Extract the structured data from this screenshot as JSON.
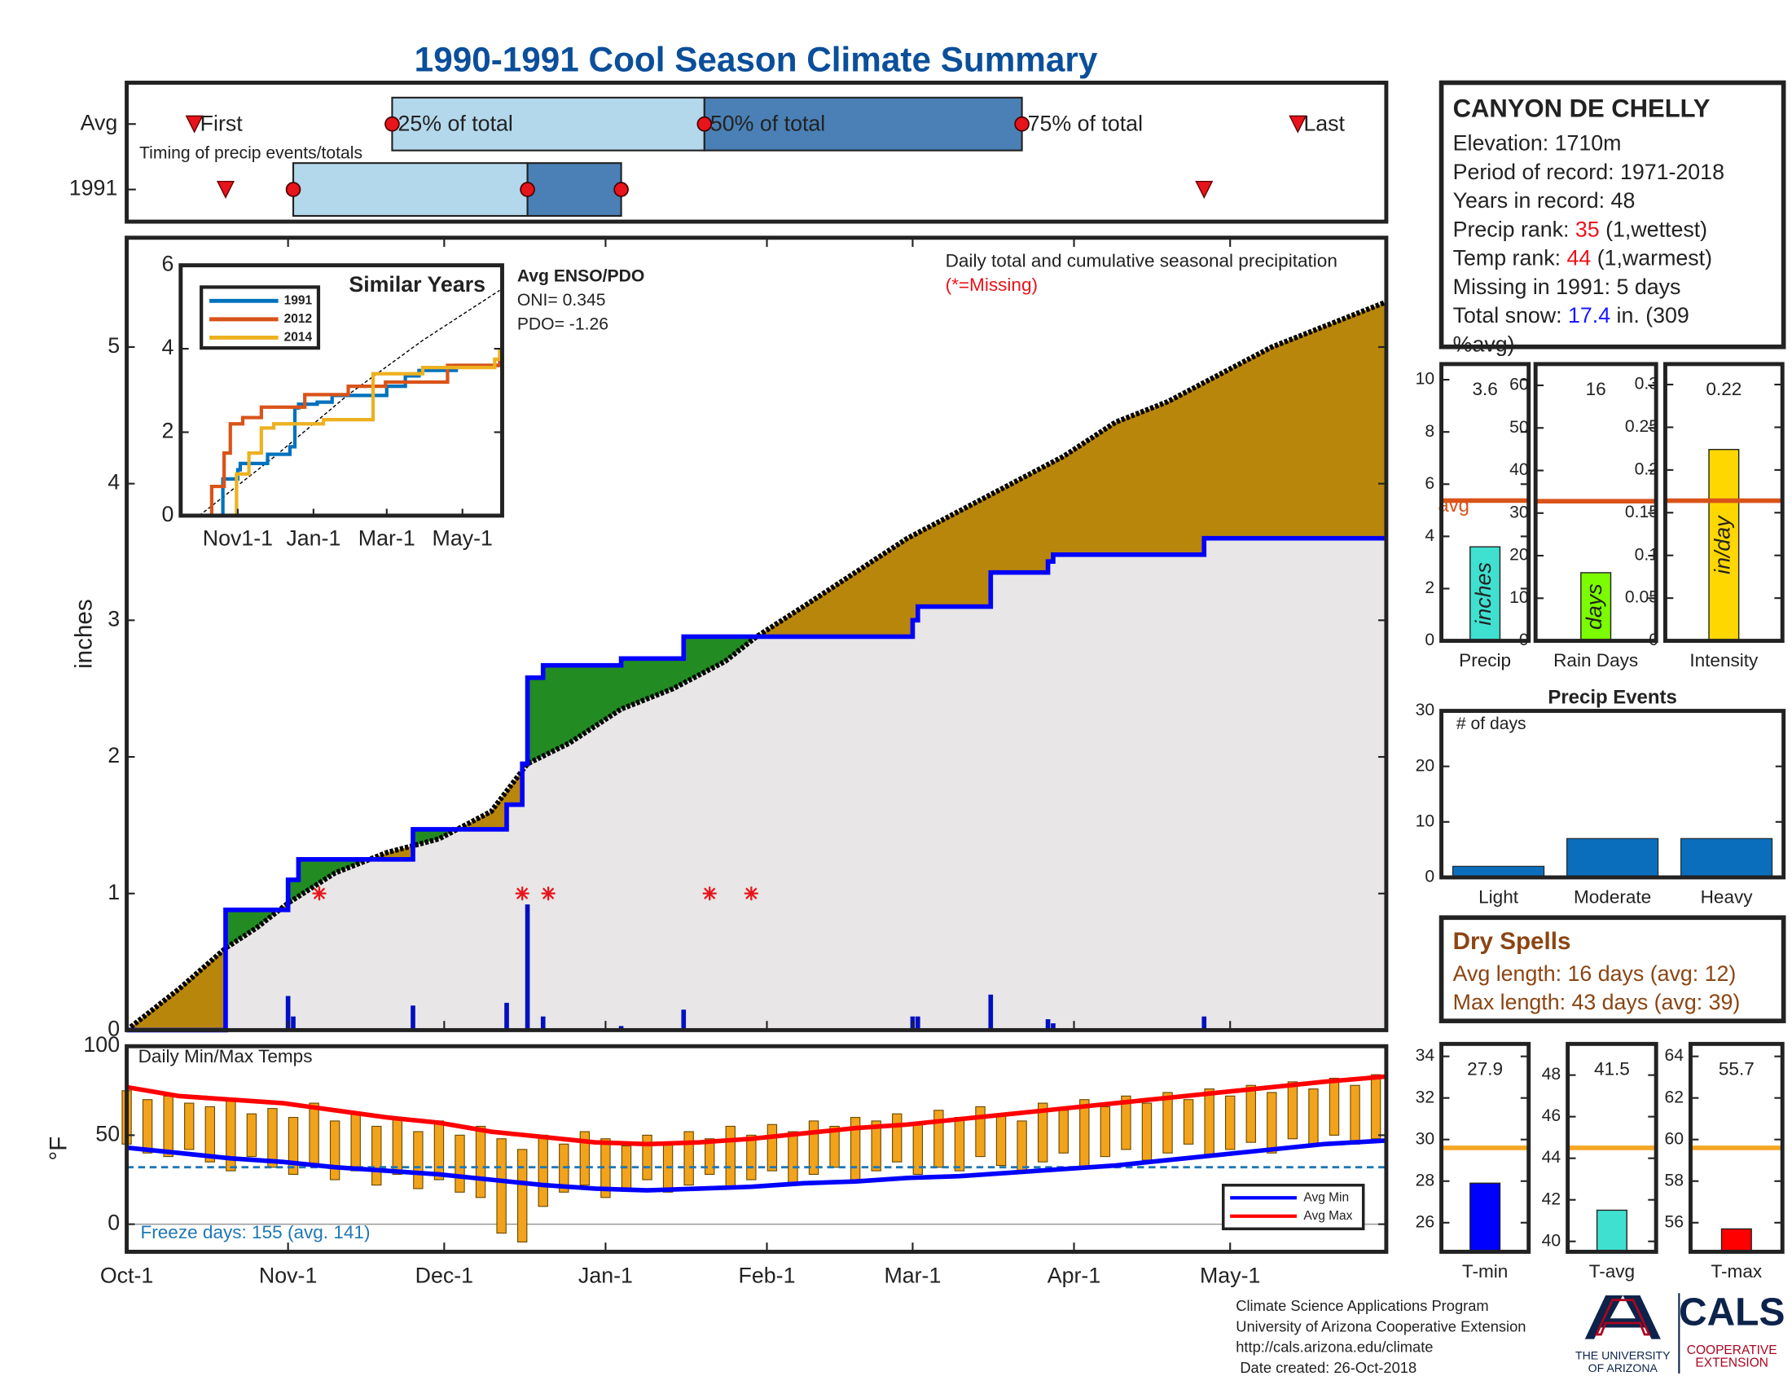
{
  "title": "1990-1991 Cool Season Climate Summary",
  "station": {
    "name": "CANYON DE CHELLY",
    "lines": [
      {
        "text": "Elevation: 1710m"
      },
      {
        "text": "Period of record: 1971-2018"
      },
      {
        "text": "Years in record: 48"
      },
      {
        "text": "Precip rank: ",
        "value": "35",
        "value_color": "#e8141b",
        "note": " (1,wettest)"
      },
      {
        "text": "Temp rank: ",
        "value": "44",
        "value_color": "#e8141b",
        "note": " (1,warmest)"
      },
      {
        "text": "Missing in 1991: 5 days"
      },
      {
        "text": "Total snow: ",
        "value": "17.4",
        "value_color": "#1a1aff",
        "note": " in. (309"
      },
      {
        "text": "%avg)"
      }
    ]
  },
  "dry_spells": {
    "title": "Dry Spells",
    "color": "#8b4513",
    "lines": [
      "Avg length: 16 days (avg: 12)",
      "Max length: 43 days (avg: 39)"
    ]
  },
  "footer": {
    "lines": [
      "Climate Science Applications Program",
      "University of Arizona Cooperative Extension",
      "http://cals.arizona.edu/climate",
      " Date created: 26-Oct-2018"
    ],
    "university": [
      "THE UNIVERSITY",
      "OF ARIZONA"
    ],
    "cals": "CALS",
    "extension": [
      "COOPERATIVE",
      "EXTENSION"
    ]
  },
  "chart_data": [
    {
      "type": "timing",
      "xlim": [
        0,
        242
      ],
      "note": "Timing of precip events/totals",
      "labels": {
        "first": "First",
        "p25": "25% of total",
        "p50": "50% of total",
        "p75": "75% of total",
        "last": "Last"
      },
      "box_colors": [
        "#b3d8ec",
        "#4a80b6"
      ],
      "marker_color": "#e8141b",
      "rows": [
        {
          "name": "Avg",
          "first": 13,
          "p25": 51,
          "p50": 111,
          "p75": 172,
          "last": 225
        },
        {
          "name": "1991",
          "first": 19,
          "p25": 32,
          "p50": 77,
          "p75": 95,
          "last": 207
        }
      ]
    },
    {
      "type": "step-area",
      "xlim": [
        0,
        242
      ],
      "ylim": [
        0,
        5.8
      ],
      "yticks": [
        0,
        1,
        2,
        3,
        4,
        5
      ],
      "ylabel": "inches",
      "annotation": "Daily total and cumulative seasonal precipitation",
      "missing_note": "(*=Missing)",
      "missing_color": "#e8141b",
      "deficit_color": "#b8860b",
      "surplus_color": "#228b22",
      "base_color": "#e8e6e6",
      "average": {
        "color": "#000000",
        "x": [
          0,
          10,
          19,
          25,
          31,
          40,
          50,
          60,
          70,
          77,
          85,
          95,
          105,
          115,
          121,
          130,
          140,
          150,
          160,
          170,
          180,
          190,
          200,
          210,
          220,
          230,
          242
        ],
        "values": [
          0,
          0.3,
          0.6,
          0.75,
          0.93,
          1.15,
          1.3,
          1.4,
          1.6,
          1.95,
          2.1,
          2.35,
          2.5,
          2.7,
          2.88,
          3.1,
          3.35,
          3.6,
          3.8,
          4.0,
          4.2,
          4.45,
          4.6,
          4.8,
          5.0,
          5.15,
          5.33
        ]
      },
      "season": {
        "color": "#0000ff",
        "x": [
          0,
          19,
          31,
          33,
          55,
          73,
          76,
          77,
          80,
          95,
          107,
          151,
          152,
          166,
          177,
          178,
          207,
          242
        ],
        "values": [
          0,
          0.88,
          1.1,
          1.25,
          1.47,
          1.65,
          1.95,
          2.58,
          2.67,
          2.72,
          2.88,
          3.0,
          3.1,
          3.35,
          3.43,
          3.48,
          3.6,
          3.6
        ]
      },
      "daily": {
        "color": "#0010c0",
        "x": [
          31,
          32,
          55,
          73,
          77,
          80,
          95,
          107,
          151,
          152,
          166,
          177,
          178,
          207
        ],
        "values": [
          0.25,
          0.1,
          0.18,
          0.2,
          0.92,
          0.1,
          0.03,
          0.15,
          0.1,
          0.1,
          0.26,
          0.08,
          0.05,
          0.1
        ]
      },
      "missing_x": [
        37,
        76,
        81,
        112,
        120
      ]
    },
    {
      "type": "line",
      "title": "Similar Years",
      "xlim": [
        -15,
        244
      ],
      "ylim": [
        0,
        6
      ],
      "xticks": [
        {
          "value": 31,
          "label": "Nov1-1"
        },
        {
          "value": 92,
          "label": "Jan-1"
        },
        {
          "value": 151,
          "label": "Mar-1"
        },
        {
          "value": 212,
          "label": "May-1"
        }
      ],
      "yticks": [
        0,
        2,
        4,
        6
      ],
      "annotations": [
        "Avg ENSO/PDO",
        "ONI= 0.345",
        "PDO= -1.26"
      ],
      "series": [
        {
          "name": "1991",
          "color": "#0072bd",
          "x": [
            0,
            19,
            31,
            33,
            55,
            73,
            77,
            80,
            95,
            107,
            151,
            166,
            177,
            207,
            242
          ],
          "values": [
            0,
            0.88,
            1.1,
            1.25,
            1.47,
            1.65,
            2.58,
            2.67,
            2.72,
            2.88,
            3.1,
            3.35,
            3.48,
            3.6,
            3.6
          ]
        },
        {
          "name": "2012",
          "color": "#d95319",
          "x": [
            0,
            10,
            20,
            25,
            35,
            50,
            85,
            120,
            150,
            200,
            242
          ],
          "values": [
            0,
            0.7,
            1.5,
            2.2,
            2.35,
            2.6,
            2.9,
            3.1,
            3.2,
            3.6,
            3.8
          ]
        },
        {
          "name": "2014",
          "color": "#edb120",
          "x": [
            0,
            30,
            40,
            50,
            60,
            100,
            140,
            180,
            238,
            242
          ],
          "values": [
            0,
            1.0,
            1.5,
            2.1,
            2.2,
            2.3,
            3.4,
            3.55,
            3.75,
            4.0
          ]
        }
      ],
      "average": {
        "color": "#000000",
        "x": [
          0,
          60,
          120,
          180,
          242
        ],
        "values": [
          0,
          1.4,
          2.9,
          4.2,
          5.4
        ]
      }
    },
    {
      "type": "range-bar",
      "title": "Daily Min/Max Temps",
      "ylabel": "°F",
      "xlim": [
        0,
        242
      ],
      "ylim": [
        -15.5,
        100
      ],
      "yticks": [
        0,
        50,
        100
      ],
      "xticks": [
        {
          "value": 0,
          "label": "Oct-1"
        },
        {
          "value": 31,
          "label": "Nov-1"
        },
        {
          "value": 61,
          "label": "Dec-1"
        },
        {
          "value": 92,
          "label": "Jan-1"
        },
        {
          "value": 123,
          "label": "Feb-1"
        },
        {
          "value": 151,
          "label": "Mar-1"
        },
        {
          "value": 182,
          "label": "Apr-1"
        },
        {
          "value": 212,
          "label": "May-1"
        }
      ],
      "freeze": 32,
      "freeze_color": "#1f77b4",
      "freeze_note": "Freeze days: 155 (avg. 141)",
      "bar_color": "#f2a31c",
      "legend": "lower right",
      "x": [
        0,
        4,
        8,
        12,
        16,
        20,
        24,
        28,
        32,
        36,
        40,
        44,
        48,
        52,
        56,
        60,
        64,
        68,
        72,
        76,
        80,
        84,
        88,
        92,
        96,
        100,
        104,
        108,
        112,
        116,
        120,
        124,
        128,
        132,
        136,
        140,
        144,
        148,
        152,
        156,
        160,
        164,
        168,
        172,
        176,
        180,
        184,
        188,
        192,
        196,
        200,
        204,
        208,
        212,
        216,
        220,
        224,
        228,
        232,
        236,
        240
      ],
      "max": [
        75,
        70,
        72,
        68,
        66,
        70,
        62,
        65,
        60,
        68,
        58,
        62,
        55,
        60,
        52,
        58,
        50,
        55,
        48,
        42,
        50,
        45,
        52,
        48,
        44,
        50,
        46,
        52,
        48,
        55,
        50,
        56,
        52,
        58,
        55,
        60,
        58,
        62,
        57,
        64,
        60,
        66,
        62,
        58,
        68,
        64,
        70,
        66,
        72,
        68,
        74,
        70,
        76,
        72,
        78,
        74,
        80,
        76,
        82,
        78,
        84
      ],
      "min": [
        45,
        40,
        38,
        42,
        35,
        30,
        38,
        32,
        28,
        34,
        25,
        30,
        22,
        28,
        20,
        25,
        18,
        15,
        -5,
        -10,
        10,
        18,
        22,
        15,
        20,
        25,
        18,
        22,
        28,
        20,
        25,
        30,
        22,
        28,
        32,
        25,
        30,
        35,
        28,
        32,
        30,
        38,
        33,
        30,
        35,
        40,
        32,
        38,
        42,
        36,
        40,
        45,
        38,
        42,
        46,
        40,
        48,
        44,
        50,
        45,
        48
      ],
      "series": [
        {
          "name": "Avg Min",
          "color": "#0000ff",
          "x": [
            0,
            10,
            20,
            30,
            40,
            50,
            60,
            70,
            80,
            90,
            100,
            110,
            120,
            130,
            140,
            150,
            160,
            170,
            180,
            190,
            200,
            210,
            220,
            230,
            242
          ],
          "values": [
            43,
            40,
            37,
            35,
            32,
            30,
            28,
            25,
            22,
            20,
            19,
            20,
            21,
            23,
            24,
            26,
            27,
            29,
            31,
            33,
            36,
            39,
            42,
            45,
            47
          ]
        },
        {
          "name": "Avg Max",
          "color": "#ff0000",
          "x": [
            0,
            10,
            20,
            30,
            40,
            50,
            60,
            70,
            80,
            90,
            100,
            110,
            120,
            130,
            140,
            150,
            160,
            170,
            180,
            190,
            200,
            210,
            220,
            230,
            242
          ],
          "values": [
            77,
            72,
            70,
            68,
            64,
            60,
            57,
            52,
            49,
            46,
            45,
            46,
            48,
            51,
            54,
            56,
            59,
            62,
            65,
            68,
            71,
            74,
            77,
            80,
            83
          ]
        }
      ]
    },
    {
      "type": "bar",
      "category": "Precip",
      "value": 3.6,
      "unit": "inches",
      "avg": 5.37,
      "avg_label": "avg",
      "ylim": [
        0,
        10.6
      ],
      "yticks": [
        0,
        2,
        4,
        6,
        8,
        10
      ],
      "color": "#40e0d0",
      "avg_color": "#d95319"
    },
    {
      "type": "bar",
      "category": "Rain Days",
      "value": 16,
      "unit": "days",
      "avg": 32.8,
      "ylim": [
        0,
        65
      ],
      "yticks": [
        0,
        10,
        20,
        30,
        40,
        50,
        60
      ],
      "color": "#7cfc00",
      "avg_color": "#d95319"
    },
    {
      "type": "bar",
      "category": "Intensity",
      "value": 0.224,
      "value_label": "0.22",
      "unit": "in/day",
      "avg": 0.164,
      "ylim": [
        0,
        0.324
      ],
      "yticks": [
        0,
        0.05,
        0.1,
        0.15,
        0.2,
        0.25,
        0.3
      ],
      "color": "#ffd700",
      "avg_color": "#d95319"
    },
    {
      "type": "bar",
      "title": "Precip Events",
      "note": "# of days",
      "categories": [
        "Light",
        "Moderate",
        "Heavy"
      ],
      "values": [
        2,
        7,
        7
      ],
      "ylim": [
        0,
        30
      ],
      "yticks": [
        0,
        10,
        20,
        30
      ],
      "color": "#0a6ebd"
    },
    {
      "type": "bar",
      "category": "T-min",
      "value": 27.9,
      "avg": 29.6,
      "ylim": [
        24.6,
        34.6
      ],
      "yticks": [
        26,
        28,
        30,
        32,
        34
      ],
      "color": "#0000ff",
      "avg_color": "#f5a623"
    },
    {
      "type": "bar",
      "category": "T-avg",
      "value": 41.5,
      "avg": 44.5,
      "ylim": [
        39.5,
        49.5
      ],
      "yticks": [
        40,
        42,
        44,
        46,
        48
      ],
      "color": "#40e0d0",
      "avg_color": "#f5a623"
    },
    {
      "type": "bar",
      "category": "T-max",
      "value": 55.7,
      "avg": 59.6,
      "ylim": [
        54.6,
        64.6
      ],
      "yticks": [
        56,
        58,
        60,
        62,
        64
      ],
      "color": "#ff0000",
      "avg_color": "#f5a623"
    }
  ]
}
